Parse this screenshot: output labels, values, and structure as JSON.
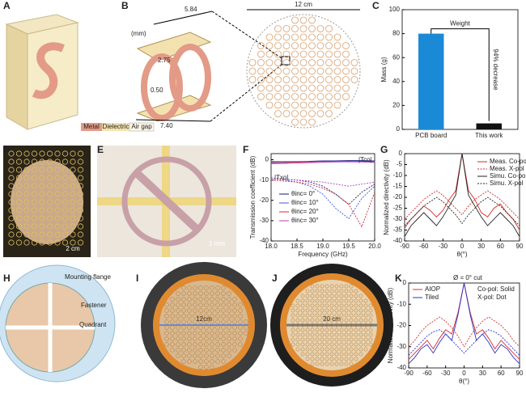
{
  "panels": {
    "labels": [
      "A",
      "B",
      "C",
      "D",
      "E",
      "F",
      "G",
      "H",
      "I",
      "J",
      "K"
    ]
  },
  "unit_cell": {
    "dim_top": "5.84",
    "unit": "(mm)",
    "dim_mid": "2.75",
    "dim_gap": "0.50",
    "dim_bottom": "7.40",
    "legend": [
      "Metal",
      "Dielectric",
      "Air gap"
    ]
  },
  "array": {
    "diameter": "12 cm"
  },
  "photos": {
    "scale_d": "2 cm",
    "scale_e": "1 mm",
    "size_i": "12cm",
    "size_j": "20 cm"
  },
  "assembly": {
    "labels": [
      "Mounting flange",
      "Fastener",
      "Quadrant"
    ]
  },
  "chart_data": [
    {
      "type": "bar",
      "ylabel": "Mass (g)",
      "categories": [
        "PCB board",
        "This work"
      ],
      "values": [
        80,
        5
      ],
      "colors": [
        "#1b8ad6",
        "#111111"
      ],
      "ylim": [
        0,
        100
      ],
      "yticks": [
        0,
        20,
        40,
        60,
        80,
        100
      ],
      "annotations": [
        "Weight",
        "94% decrease"
      ]
    },
    {
      "type": "line",
      "xlabel": "Frequency (GHz)",
      "ylabel": "Transmission coefficient (dB)",
      "x": [
        18,
        18.25,
        18.5,
        18.75,
        19,
        19.25,
        19.5,
        19.75,
        20
      ],
      "xlim": [
        18,
        20
      ],
      "xticks": [
        {
          "value": 18,
          "label": "18.0"
        },
        {
          "value": 18.5,
          "label": "18.5"
        },
        {
          "value": 19,
          "label": "19.0"
        },
        {
          "value": 19.5,
          "label": "19.5"
        },
        {
          "value": 20,
          "label": "20.0"
        }
      ],
      "ylim": [
        -40,
        3
      ],
      "yticks": [
        0,
        -10,
        -20,
        -30,
        -40
      ],
      "annotations": [
        "|Tco|",
        "|Txo|"
      ],
      "series": [
        {
          "name": "θinc= 0°",
          "color": "#1a1a6e",
          "values": [
            -1,
            -1,
            -0.9,
            -0.8,
            -0.6,
            -0.5,
            -0.4,
            -0.4,
            -0.6
          ],
          "xpol_values": [
            -9,
            -9.5,
            -10,
            -11,
            -13,
            -17,
            -22,
            -16,
            -12
          ]
        },
        {
          "name": "θinc= 10°",
          "color": "#3b5bd6",
          "values": [
            -1.2,
            -1.1,
            -1,
            -0.9,
            -0.7,
            -0.6,
            -0.5,
            -0.5,
            -0.7
          ],
          "xpol_values": [
            -9,
            -10,
            -11,
            -13,
            -17,
            -24,
            -29,
            -19,
            -13
          ]
        },
        {
          "name": "θinc= 20°",
          "color": "#d42a3a",
          "values": [
            -1.5,
            -1.4,
            -1.2,
            -1,
            -0.9,
            -0.8,
            -0.7,
            -0.8,
            -1
          ],
          "xpol_values": [
            -10,
            -10.5,
            -11,
            -12,
            -14,
            -17,
            -22,
            -33,
            -16
          ]
        },
        {
          "name": "θinc= 30°",
          "color": "#b040c0",
          "values": [
            -2,
            -1.8,
            -1.6,
            -1.4,
            -1.2,
            -1.1,
            -1,
            -1.1,
            -1.3
          ],
          "xpol_values": [
            -9,
            -9.5,
            -10,
            -10.5,
            -11,
            -12,
            -13,
            -12,
            -11
          ]
        }
      ]
    },
    {
      "type": "line",
      "xlabel": "θ(°)",
      "ylabel": "Normalized directivity (dB)",
      "x": [
        -90,
        -80,
        -70,
        -60,
        -50,
        -40,
        -30,
        -20,
        -10,
        0,
        10,
        20,
        30,
        40,
        50,
        60,
        70,
        80,
        90
      ],
      "xlim": [
        -90,
        90
      ],
      "xticks": [
        -90,
        -60,
        -30,
        0,
        30,
        60,
        90
      ],
      "ylim": [
        -40,
        0
      ],
      "yticks": [
        0,
        -5,
        -10,
        -15,
        -20,
        -25,
        -30,
        -35,
        -40
      ],
      "series": [
        {
          "name": "Meas. Co-pol",
          "color": "#d42a2a",
          "style": "solid",
          "values": [
            -34,
            -30,
            -27,
            -24,
            -26,
            -29,
            -26,
            -21,
            -17,
            0,
            -17,
            -21,
            -27,
            -29,
            -25,
            -23,
            -27,
            -30,
            -35
          ]
        },
        {
          "name": "Meas. X-pol",
          "color": "#d42a2a",
          "style": "dotted",
          "values": [
            -30,
            -27,
            -24,
            -21,
            -19,
            -17,
            -19,
            -22,
            -25,
            -28,
            -24,
            -21,
            -19,
            -17,
            -19,
            -21,
            -24,
            -27,
            -30
          ]
        },
        {
          "name": "Simu. Co-pol",
          "color": "#222222",
          "style": "solid",
          "values": [
            -38,
            -33,
            -30,
            -27,
            -30,
            -33,
            -29,
            -24,
            -19,
            0,
            -19,
            -24,
            -29,
            -33,
            -30,
            -27,
            -30,
            -33,
            -38
          ]
        },
        {
          "name": "Simu. X-pol",
          "color": "#222222",
          "style": "dotted",
          "values": [
            -33,
            -30,
            -27,
            -24,
            -22,
            -20,
            -22,
            -25,
            -28,
            -32,
            -28,
            -25,
            -22,
            -20,
            -22,
            -24,
            -27,
            -30,
            -33
          ]
        }
      ]
    },
    {
      "type": "line",
      "title": "Ø = 0° cut",
      "notes": [
        "Co-pol: Solid",
        "X-pol: Dot"
      ],
      "xlabel": "θ(°)",
      "ylabel": "Normalized directivity (dB)",
      "x": [
        -90,
        -80,
        -70,
        -60,
        -50,
        -40,
        -30,
        -20,
        -10,
        0,
        10,
        20,
        30,
        40,
        50,
        60,
        70,
        80,
        90
      ],
      "xlim": [
        -90,
        90
      ],
      "xticks": [
        -90,
        -60,
        -30,
        0,
        30,
        60,
        90
      ],
      "ylim": [
        -40,
        0
      ],
      "yticks": [
        0,
        -10,
        -20,
        -30,
        -40
      ],
      "series": [
        {
          "name": "AIOP",
          "color": "#d43030",
          "values": [
            -36,
            -33,
            -30,
            -27,
            -31,
            -26,
            -22,
            -24,
            -14,
            0,
            -14,
            -24,
            -22,
            -26,
            -31,
            -27,
            -30,
            -33,
            -36
          ],
          "xpol_values": [
            -30,
            -27,
            -23,
            -20,
            -18,
            -16,
            -18,
            -21,
            -25,
            -30,
            -25,
            -21,
            -18,
            -16,
            -18,
            -20,
            -23,
            -27,
            -30
          ]
        },
        {
          "name": "Tiled",
          "color": "#3030c8",
          "values": [
            -38,
            -35,
            -31,
            -29,
            -33,
            -28,
            -24,
            -27,
            -15,
            0,
            -15,
            -27,
            -24,
            -28,
            -33,
            -29,
            -31,
            -35,
            -38
          ],
          "xpol_values": [
            -34,
            -31,
            -28,
            -25,
            -23,
            -22,
            -24,
            -27,
            -30,
            -33,
            -30,
            -27,
            -24,
            -22,
            -23,
            -25,
            -28,
            -31,
            -34
          ]
        }
      ]
    }
  ]
}
